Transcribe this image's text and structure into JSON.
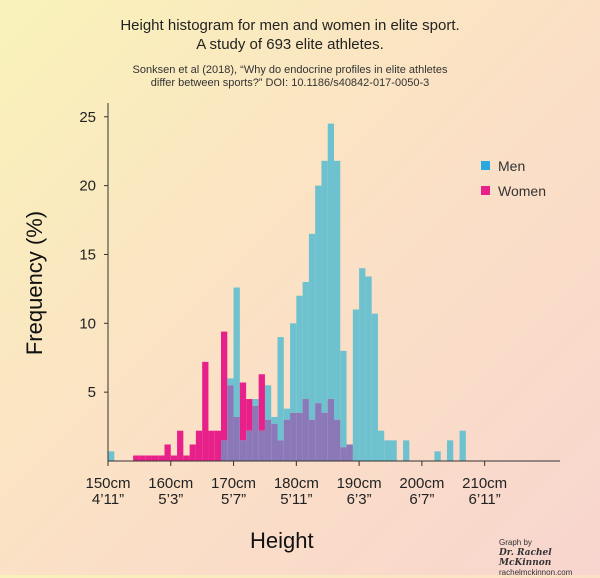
{
  "title_line1": "Height histogram for men and women in elite sport.",
  "title_line2": "A study of 693 elite athletes.",
  "source_line1": "Sonksen et al (2018), “Why do endocrine profiles in elite athletes",
  "source_line2": "differ between sports?” DOI: 10.1186/s40842-017-0050-3",
  "credit": {
    "line1": "Graph by",
    "name": "Dr. Rachel McKinnon",
    "site": "rachelmckinnon.com"
  },
  "colors": {
    "men": "#6ec1cf",
    "women": "#e8218a",
    "overlap": "#8a78b8"
  },
  "chart_data": {
    "type": "bar",
    "title": "Height histogram for men and women in elite sport.\nA study of 693 elite athletes.",
    "xlabel": "Height",
    "ylabel": "Frequency (%)",
    "xlim": [
      150,
      222
    ],
    "ylim": [
      0,
      26
    ],
    "yticks": [
      5,
      10,
      15,
      20,
      25
    ],
    "xticks": [
      {
        "value": 150,
        "cm": "150cm",
        "ft": "4’11”"
      },
      {
        "value": 160,
        "cm": "160cm",
        "ft": "5’3”"
      },
      {
        "value": 170,
        "cm": "170cm",
        "ft": "5’7”"
      },
      {
        "value": 180,
        "cm": "180cm",
        "ft": "5’11”"
      },
      {
        "value": 190,
        "cm": "190cm",
        "ft": "6’3”"
      },
      {
        "value": 200,
        "cm": "200cm",
        "ft": "6’7”"
      },
      {
        "value": 210,
        "cm": "210cm",
        "ft": "6’11”"
      }
    ],
    "bin_width": 1,
    "legend_position": "top-right",
    "series": [
      {
        "name": "Men",
        "bins": [
          [
            150,
            0.7
          ],
          [
            151,
            0
          ],
          [
            152,
            0
          ],
          [
            153,
            0
          ],
          [
            154,
            0
          ],
          [
            155,
            0
          ],
          [
            156,
            0
          ],
          [
            157,
            0
          ],
          [
            158,
            0
          ],
          [
            159,
            0
          ],
          [
            160,
            0
          ],
          [
            161,
            0
          ],
          [
            162,
            0
          ],
          [
            163,
            0
          ],
          [
            164,
            0
          ],
          [
            165,
            0
          ],
          [
            166,
            0
          ],
          [
            167,
            0
          ],
          [
            168,
            1.5
          ],
          [
            169,
            6
          ],
          [
            170,
            12.6
          ],
          [
            171,
            1.5
          ],
          [
            172,
            2.2
          ],
          [
            173,
            4.5
          ],
          [
            174,
            2.2
          ],
          [
            175,
            5.5
          ],
          [
            176,
            3.2
          ],
          [
            177,
            9
          ],
          [
            178,
            3.8
          ],
          [
            179,
            10
          ],
          [
            180,
            12
          ],
          [
            181,
            13
          ],
          [
            182,
            16.5
          ],
          [
            183,
            20
          ],
          [
            184,
            21.8
          ],
          [
            185,
            24.5
          ],
          [
            186,
            21.8
          ],
          [
            187,
            8
          ],
          [
            188,
            1.2
          ],
          [
            189,
            11
          ],
          [
            190,
            14
          ],
          [
            191,
            13.4
          ],
          [
            192,
            10.7
          ],
          [
            193,
            2.2
          ],
          [
            194,
            1.5
          ],
          [
            195,
            1.5
          ],
          [
            196,
            0
          ],
          [
            197,
            1.5
          ],
          [
            198,
            0
          ],
          [
            199,
            0
          ],
          [
            200,
            0
          ],
          [
            201,
            0
          ],
          [
            202,
            0.7
          ],
          [
            203,
            0
          ],
          [
            204,
            1.5
          ],
          [
            205,
            0
          ],
          [
            206,
            2.2
          ],
          [
            207,
            0
          ],
          [
            208,
            0
          ],
          [
            209,
            0
          ],
          [
            210,
            0
          ],
          [
            211,
            0
          ],
          [
            212,
            0
          ],
          [
            213,
            0
          ],
          [
            214,
            0
          ],
          [
            215,
            0
          ],
          [
            216,
            0
          ],
          [
            217,
            0
          ],
          [
            218,
            0
          ],
          [
            219,
            0
          ],
          [
            220,
            0
          ],
          [
            221,
            0
          ]
        ]
      },
      {
        "name": "Women",
        "bins": [
          [
            150,
            0
          ],
          [
            151,
            0
          ],
          [
            152,
            0
          ],
          [
            153,
            0
          ],
          [
            154,
            0.4
          ],
          [
            155,
            0.4
          ],
          [
            156,
            0.4
          ],
          [
            157,
            0.4
          ],
          [
            158,
            0.4
          ],
          [
            159,
            1.2
          ],
          [
            160,
            0.4
          ],
          [
            161,
            2.2
          ],
          [
            162,
            0.4
          ],
          [
            163,
            1.2
          ],
          [
            164,
            2.2
          ],
          [
            165,
            7.2
          ],
          [
            166,
            2.2
          ],
          [
            167,
            2.2
          ],
          [
            168,
            9.4
          ],
          [
            169,
            5.5
          ],
          [
            170,
            3.2
          ],
          [
            171,
            5.7
          ],
          [
            172,
            4.5
          ],
          [
            173,
            4
          ],
          [
            174,
            6.3
          ],
          [
            175,
            3
          ],
          [
            176,
            2.7
          ],
          [
            177,
            1.5
          ],
          [
            178,
            3
          ],
          [
            179,
            3.5
          ],
          [
            180,
            3.5
          ],
          [
            181,
            4.5
          ],
          [
            182,
            3
          ],
          [
            183,
            4.2
          ],
          [
            184,
            3.5
          ],
          [
            185,
            4.5
          ],
          [
            186,
            3
          ],
          [
            187,
            1
          ],
          [
            188,
            1.2
          ],
          [
            189,
            0
          ],
          [
            190,
            0
          ],
          [
            191,
            0
          ],
          [
            192,
            0
          ],
          [
            193,
            0
          ],
          [
            194,
            0
          ],
          [
            195,
            0
          ],
          [
            196,
            0
          ],
          [
            197,
            0
          ],
          [
            198,
            0
          ],
          [
            199,
            0
          ],
          [
            200,
            0
          ],
          [
            201,
            0
          ],
          [
            202,
            0
          ],
          [
            203,
            0
          ],
          [
            204,
            0
          ],
          [
            205,
            0
          ],
          [
            206,
            0
          ],
          [
            207,
            0
          ],
          [
            208,
            0
          ],
          [
            209,
            0
          ],
          [
            210,
            0
          ],
          [
            211,
            0
          ],
          [
            212,
            0
          ],
          [
            213,
            0
          ],
          [
            214,
            0
          ],
          [
            215,
            0
          ],
          [
            216,
            0
          ],
          [
            217,
            0
          ],
          [
            218,
            0
          ],
          [
            219,
            0
          ],
          [
            220,
            0
          ],
          [
            221,
            0
          ]
        ]
      }
    ]
  }
}
